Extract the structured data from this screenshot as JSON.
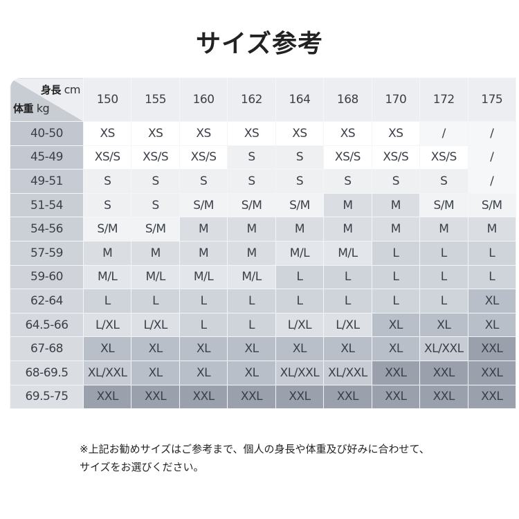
{
  "title": "サイズ参考",
  "corner": {
    "height_label": "身長",
    "height_unit": "cm",
    "weight_label": "体重",
    "weight_unit": "kg"
  },
  "heights": [
    "150",
    "155",
    "160",
    "162",
    "164",
    "168",
    "170",
    "172",
    "175"
  ],
  "rows": [
    {
      "weight": "40-50",
      "sizes": [
        "XS",
        "XS",
        "XS",
        "XS",
        "XS",
        "XS",
        "XS",
        "/",
        "/"
      ]
    },
    {
      "weight": "45-49",
      "sizes": [
        "XS/S",
        "XS/S",
        "XS/S",
        "S",
        "S",
        "XS/S",
        "XS/S",
        "XS/S",
        "/"
      ]
    },
    {
      "weight": "49-51",
      "sizes": [
        "S",
        "S",
        "S",
        "S",
        "S",
        "S",
        "S",
        "S",
        "/"
      ]
    },
    {
      "weight": "51-54",
      "sizes": [
        "S",
        "S",
        "S/M",
        "S/M",
        "S/M",
        "M",
        "M",
        "S/M",
        "S/M"
      ]
    },
    {
      "weight": "54-56",
      "sizes": [
        "S/M",
        "S/M",
        "M",
        "M",
        "M",
        "M",
        "M",
        "M",
        "M"
      ]
    },
    {
      "weight": "57-59",
      "sizes": [
        "M",
        "M",
        "M",
        "M",
        "M/L",
        "M/L",
        "L",
        "L",
        "L"
      ]
    },
    {
      "weight": "59-60",
      "sizes": [
        "M/L",
        "M/L",
        "M/L",
        "M/L",
        "L",
        "L",
        "L",
        "L",
        "L"
      ]
    },
    {
      "weight": "62-64",
      "sizes": [
        "L",
        "L",
        "L",
        "L",
        "L",
        "L",
        "L",
        "L",
        "XL"
      ]
    },
    {
      "weight": "64.5-66",
      "sizes": [
        "L/XL",
        "L/XL",
        "L",
        "L",
        "L/XL",
        "L/XL",
        "XL",
        "XL",
        "XL"
      ]
    },
    {
      "weight": "67-68",
      "sizes": [
        "XL",
        "XL",
        "XL",
        "XL",
        "XL",
        "XL",
        "XL",
        "XL/XXL",
        "XXL"
      ]
    },
    {
      "weight": "68-69.5",
      "sizes": [
        "XL/XXL",
        "XL",
        "XL",
        "XL",
        "XL/XXL",
        "XL/XXL",
        "XXL",
        "XXL",
        "XXL"
      ]
    },
    {
      "weight": "69.5-75",
      "sizes": [
        "XXL",
        "XXL",
        "XXL",
        "XXL",
        "XXL",
        "XXL",
        "XXL",
        "XXL",
        "XXL"
      ]
    }
  ],
  "size_colors": {
    "XS": "#ffffff",
    "XS/S": "#ffffff",
    "/": "#f6f7f8",
    "S": "#eef0f2",
    "S/M": "#f2f3f5",
    "M": "#dadde2",
    "M/L": "#e3e6ea",
    "L": "#cfd4db",
    "L/XL": "#dde0e5",
    "XL": "#b9bfc9",
    "XL/XXL": "#c7ccd4",
    "XXL": "#9aa1ad"
  },
  "notes": [
    "※上記お勧めサイズはご参考まで、個人の身長や体重及び好みに合わせて、",
    "サイズをお選びください。"
  ]
}
